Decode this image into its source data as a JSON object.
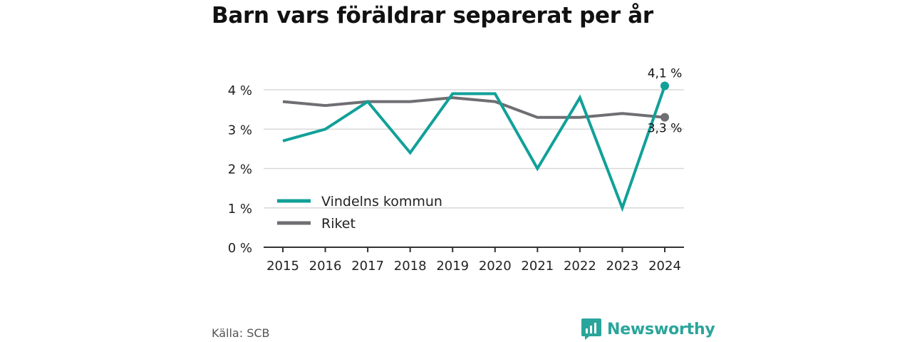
{
  "title": "Barn vars föräldrar separerat per år",
  "source": "Källa: SCB",
  "brand": {
    "name": "Newsworthy",
    "icon": "newsworthy-logo-icon"
  },
  "colors": {
    "series_1": "#11a099",
    "series_2": "#6f6e73",
    "grid": "#d9d9d9",
    "axis": "#333333"
  },
  "chart_data": {
    "type": "line",
    "x": [
      "2015",
      "2016",
      "2017",
      "2018",
      "2019",
      "2020",
      "2021",
      "2022",
      "2023",
      "2024"
    ],
    "series": [
      {
        "name": "Vindelns kommun",
        "values": [
          2.7,
          3.0,
          3.7,
          2.4,
          3.9,
          3.9,
          2.0,
          3.8,
          1.0,
          4.1
        ],
        "end_label": "4,1 %"
      },
      {
        "name": "Riket",
        "values": [
          3.7,
          3.6,
          3.7,
          3.7,
          3.8,
          3.7,
          3.3,
          3.3,
          3.4,
          3.3
        ],
        "end_label": "3,3 %"
      }
    ],
    "yticks": [
      {
        "value": 0,
        "label": "0 %"
      },
      {
        "value": 1,
        "label": "1 %"
      },
      {
        "value": 2,
        "label": "2 %"
      },
      {
        "value": 3,
        "label": "3 %"
      },
      {
        "value": 4,
        "label": "4 %"
      }
    ],
    "ylim": [
      0,
      4
    ],
    "grid": true,
    "legend_position": "bottom-left"
  }
}
